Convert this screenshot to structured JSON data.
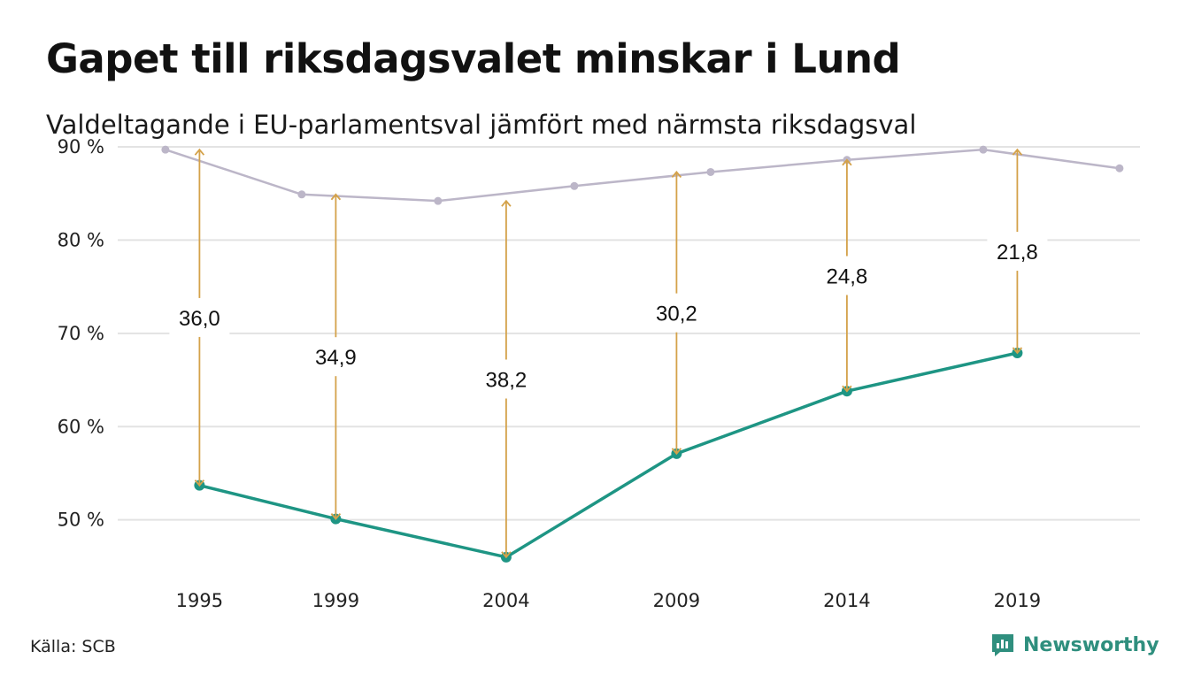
{
  "title": "Gapet till riksdagsvalet minskar i Lund",
  "subtitle": "Valdeltagande i EU-parlamentsval jämfört med närmsta riksdagsval",
  "source": "Källa: SCB",
  "brand": {
    "name": "Newsworthy",
    "icon": "bar-chart-speech-bubble-icon"
  },
  "colors": {
    "eu": "#1e9584",
    "riksdag": "#bcb6c8",
    "arrow": "#d4a24a",
    "grid": "#e3e3e3",
    "brand": "#2f8f7e"
  },
  "chart_data": {
    "type": "line",
    "ylim": [
      42,
      90
    ],
    "yticks": [
      50,
      60,
      70,
      80,
      90
    ],
    "ytick_labels": [
      "50 %",
      "60 %",
      "70 %",
      "80 %",
      "90 %"
    ],
    "xlim": [
      1992.6,
      2022.6
    ],
    "xticks": [
      1995,
      1999,
      2004,
      2009,
      2014,
      2019
    ],
    "xtick_labels": [
      "1995",
      "1999",
      "2004",
      "2009",
      "2014",
      "2019"
    ],
    "series": [
      {
        "key": "riksdag",
        "x": [
          1994,
          1998,
          2002,
          2006,
          2010,
          2014,
          2018,
          2022
        ],
        "values": [
          89.7,
          84.9,
          84.2,
          85.8,
          87.3,
          88.6,
          89.7,
          87.7
        ]
      },
      {
        "key": "eu",
        "x": [
          1995,
          1999,
          2004,
          2009,
          2014,
          2019
        ],
        "values": [
          53.7,
          50.1,
          46.0,
          57.1,
          63.8,
          67.9
        ]
      }
    ],
    "gaps": [
      {
        "x": 1995,
        "from": 53.7,
        "to": 89.7,
        "label": "36,0"
      },
      {
        "x": 1999,
        "from": 50.1,
        "to": 84.9,
        "label": "34,9"
      },
      {
        "x": 2004,
        "from": 46.0,
        "to": 84.2,
        "label": "38,2"
      },
      {
        "x": 2009,
        "from": 57.1,
        "to": 87.3,
        "label": "30,2"
      },
      {
        "x": 2014,
        "from": 63.8,
        "to": 88.6,
        "label": "24,8"
      },
      {
        "x": 2019,
        "from": 67.9,
        "to": 89.7,
        "label": "21,8"
      }
    ]
  }
}
